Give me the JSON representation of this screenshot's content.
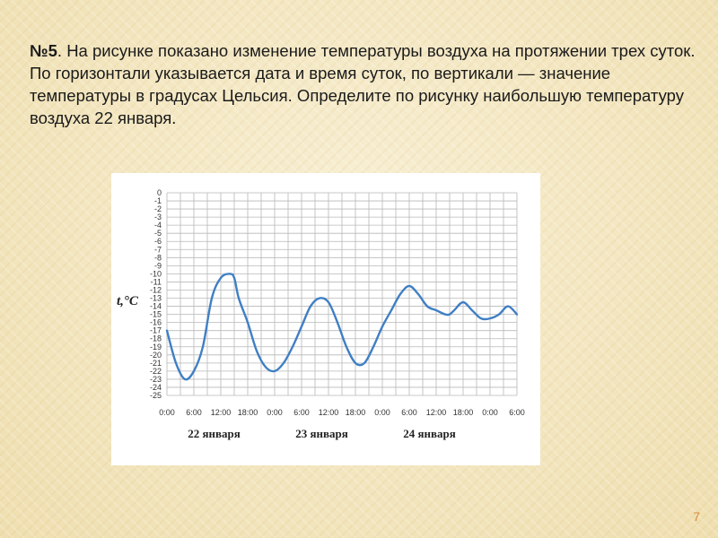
{
  "slide": {
    "number_label": "№5",
    "text": ". На рисунке показано изменение температуры воздуха на протяжении трех суток. По горизонтали указывается дата и время суток, по вертикали — значение температуры в градусах Цельсия. Определите по рисунку наибольшую температуру воздуха 22 января.",
    "page_number": "7"
  },
  "colors": {
    "line": "#3f7fc4",
    "grid": "#b8b8b8",
    "page_number": "#d58a3a"
  },
  "chart_data": {
    "type": "line",
    "title": "",
    "ylabel": "t,°C",
    "xlabel": "",
    "ylim": [
      -25,
      0
    ],
    "xlim": [
      0,
      78
    ],
    "y_ticks": [
      "0",
      "-1",
      "-2",
      "-3",
      "-4",
      "-5",
      "-6",
      "-7",
      "-8",
      "-9",
      "-10",
      "-11",
      "-12",
      "-13",
      "-14",
      "-15",
      "-16",
      "-17",
      "-18",
      "-19",
      "-20",
      "-21",
      "-22",
      "-23",
      "-24",
      "-25"
    ],
    "x_ticks": [
      "0:00",
      "6:00",
      "12:00",
      "18:00",
      "0:00",
      "6:00",
      "12:00",
      "18:00",
      "0:00",
      "6:00",
      "12:00",
      "18:00",
      "0:00",
      "6:00"
    ],
    "day_labels": [
      "22 января",
      "23 января",
      "24 января"
    ],
    "grid": true,
    "series": [
      {
        "hours": [
          0,
          2,
          4,
          6,
          8,
          10,
          12,
          14,
          15,
          16,
          18,
          20,
          22,
          24,
          26,
          28,
          30,
          32,
          34,
          36,
          38,
          40,
          42,
          44,
          46,
          48,
          50,
          52,
          54,
          56,
          58,
          60,
          62,
          63,
          64,
          66,
          68,
          70,
          72,
          74,
          76,
          78
        ],
        "temps": [
          -17,
          -21,
          -23,
          -22,
          -19,
          -13,
          -10.5,
          -10,
          -10.5,
          -13,
          -16,
          -19.5,
          -21.5,
          -22,
          -21,
          -19,
          -16.5,
          -14,
          -13,
          -13.5,
          -16,
          -19,
          -21,
          -21,
          -19,
          -16.5,
          -14.5,
          -12.5,
          -11.5,
          -12.5,
          -14,
          -14.5,
          -15,
          -15,
          -14.5,
          -13.5,
          -14.5,
          -15.5,
          -15.5,
          -15,
          -14,
          -15
        ]
      }
    ]
  }
}
